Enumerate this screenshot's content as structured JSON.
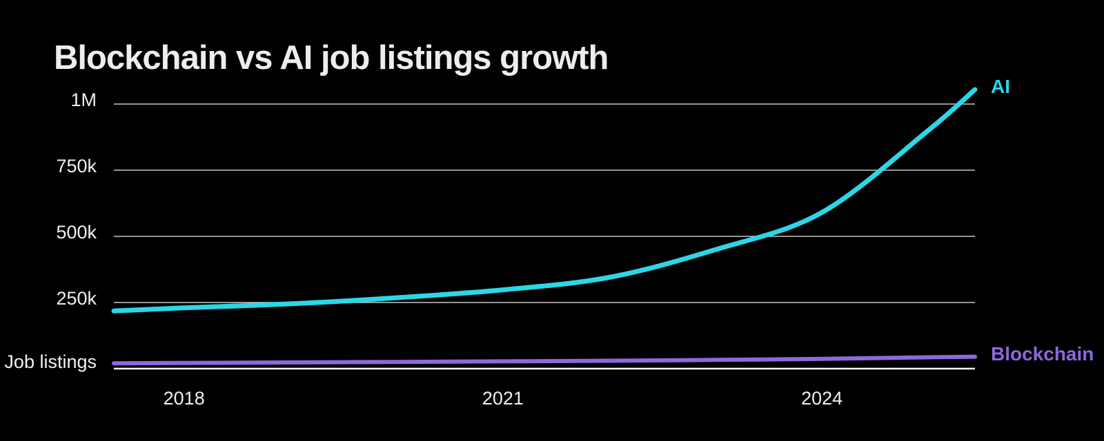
{
  "page": {
    "background_color": "#000000",
    "text_color": "#f0f0f0"
  },
  "chart_data": {
    "type": "line",
    "title": "Blockchain vs AI job listings growth",
    "ylabel": "Job listings",
    "xlabel": "",
    "x": [
      2017.34,
      2018,
      2019,
      2020,
      2021,
      2022,
      2023,
      2024,
      2025,
      2025.44
    ],
    "series": [
      {
        "name": "AI",
        "color": "#2BD7E6",
        "values": [
          218000,
          230000,
          245000,
          268000,
          298000,
          345000,
          450000,
          590000,
          900000,
          1055000
        ]
      },
      {
        "name": "Blockchain",
        "color": "#8D68DF",
        "values": [
          20000,
          21500,
          23500,
          25500,
          27500,
          30000,
          33000,
          37000,
          43000,
          45000
        ]
      }
    ],
    "y_ticks": [
      {
        "label": "1M",
        "value": 1000000
      },
      {
        "label": "750k",
        "value": 750000
      },
      {
        "label": "500k",
        "value": 500000
      },
      {
        "label": "250k",
        "value": 250000
      }
    ],
    "x_ticks": [
      {
        "label": "2018",
        "value": 2018
      },
      {
        "label": "2021",
        "value": 2021
      },
      {
        "label": "2024",
        "value": 2024
      }
    ],
    "xlim": [
      2017.34,
      2025.44
    ],
    "ylim": [
      0,
      1000000
    ],
    "grid": true,
    "gridline_color": "#c9c9c9",
    "baseline_color": "#ffffff",
    "legend_position": "right-of-line-ends"
  }
}
